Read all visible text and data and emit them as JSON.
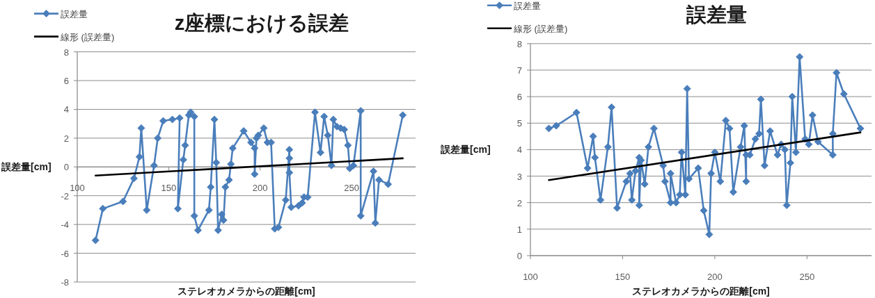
{
  "chart_data": [
    {
      "type": "line",
      "title": "z座標における誤差",
      "xlabel": "ステレオカメラからの距離[cm]",
      "ylabel": "誤差量[cm]",
      "xlim": [
        100,
        285
      ],
      "xticks": [
        100,
        150,
        200,
        250
      ],
      "ylim": [
        -8,
        8
      ],
      "yticks": [
        -8,
        -6,
        -4,
        -2,
        0,
        2,
        4,
        6,
        8
      ],
      "grid": "y",
      "legend": "top left",
      "marker": "diamond",
      "series": [
        {
          "name": "誤差量",
          "color": "#4a7ebb",
          "x": [
            110,
            114,
            125,
            131,
            134,
            135,
            138,
            142,
            144,
            147,
            152,
            156,
            155,
            158,
            159,
            161,
            162,
            164,
            164,
            166,
            172,
            173,
            175,
            176,
            177,
            179,
            180,
            181,
            183,
            184,
            185,
            191,
            195,
            197,
            197,
            198,
            199,
            202,
            204,
            206,
            208,
            210,
            214,
            216,
            216,
            216,
            217,
            221,
            223,
            224,
            226,
            230,
            233,
            235,
            237,
            239,
            240,
            242,
            244,
            246,
            248,
            249,
            251,
            255,
            255,
            262,
            263,
            265,
            270,
            278
          ],
          "values": [
            -5.1,
            -2.9,
            -2.4,
            -0.8,
            0.7,
            2.7,
            -3.0,
            0.1,
            2.0,
            3.2,
            3.3,
            3.4,
            -2.9,
            0.5,
            1.5,
            3.6,
            3.8,
            3.5,
            -3.4,
            -4.4,
            -3.0,
            -1.4,
            3.3,
            0.3,
            -4.4,
            -3.3,
            -3.7,
            -1.4,
            -0.9,
            0.2,
            1.3,
            2.5,
            1.7,
            1.3,
            -0.5,
            2.0,
            2.2,
            2.7,
            1.7,
            1.7,
            -4.3,
            -4.2,
            -2.3,
            1.2,
            0.6,
            -0.4,
            -2.8,
            -2.7,
            -2.5,
            -2.1,
            -2.1,
            3.8,
            1.0,
            3.5,
            2.2,
            0.1,
            3.3,
            2.8,
            2.7,
            2.6,
            1.5,
            -0.1,
            0.1,
            3.9,
            -3.4,
            -0.3,
            -3.9,
            -0.9,
            -1.2,
            3.6
          ]
        },
        {
          "name": "線形 (誤差量)",
          "color": "#000000",
          "marker": "none",
          "x": [
            110,
            278
          ],
          "values": [
            -0.6,
            0.6
          ]
        }
      ]
    },
    {
      "type": "line",
      "title": "誤差量",
      "xlabel": "ステレオカメラからの距離[cm]",
      "ylabel": "誤差量[cm]",
      "xlim": [
        100,
        285
      ],
      "xticks": [
        100,
        150,
        200,
        250
      ],
      "ylim": [
        0,
        8
      ],
      "yticks": [
        0,
        1,
        2,
        3,
        4,
        5,
        6,
        7,
        8
      ],
      "grid": "y",
      "legend": "top left",
      "marker": "diamond",
      "series": [
        {
          "name": "誤差量",
          "color": "#4a7ebb",
          "x": [
            110,
            114,
            125,
            131,
            134,
            135,
            138,
            142,
            144,
            147,
            152,
            154,
            155,
            157,
            159,
            159,
            160,
            162,
            164,
            167,
            172,
            173,
            176,
            176,
            179,
            181,
            182,
            184,
            185,
            186,
            191,
            194,
            197,
            198,
            200,
            203,
            206,
            208,
            210,
            214,
            216,
            217,
            217,
            219,
            222,
            224,
            225,
            227,
            230,
            234,
            236,
            238,
            239,
            241,
            242,
            244,
            246,
            249,
            251,
            253,
            256,
            264,
            264,
            266,
            270,
            279
          ],
          "values": [
            4.8,
            4.9,
            5.4,
            3.3,
            4.5,
            3.7,
            2.1,
            4.1,
            5.6,
            1.8,
            2.8,
            3.1,
            2.1,
            3.2,
            3.7,
            1.9,
            3.6,
            2.7,
            4.1,
            4.8,
            3.4,
            2.8,
            2.0,
            3.1,
            2.0,
            2.3,
            3.9,
            2.3,
            6.3,
            2.9,
            3.3,
            1.7,
            0.8,
            3.1,
            3.9,
            2.8,
            5.1,
            4.8,
            2.4,
            4.1,
            4.9,
            2.8,
            3.8,
            3.8,
            4.4,
            4.6,
            5.9,
            3.4,
            4.7,
            3.8,
            4.2,
            4.0,
            1.9,
            3.5,
            6.0,
            3.9,
            7.5,
            4.4,
            4.2,
            5.3,
            4.3,
            3.8,
            4.6,
            6.9,
            6.1,
            4.8
          ]
        },
        {
          "name": "線形 (誤差量)",
          "color": "#000000",
          "marker": "none",
          "x": [
            110,
            279
          ],
          "values": [
            2.85,
            4.65
          ]
        }
      ]
    }
  ]
}
